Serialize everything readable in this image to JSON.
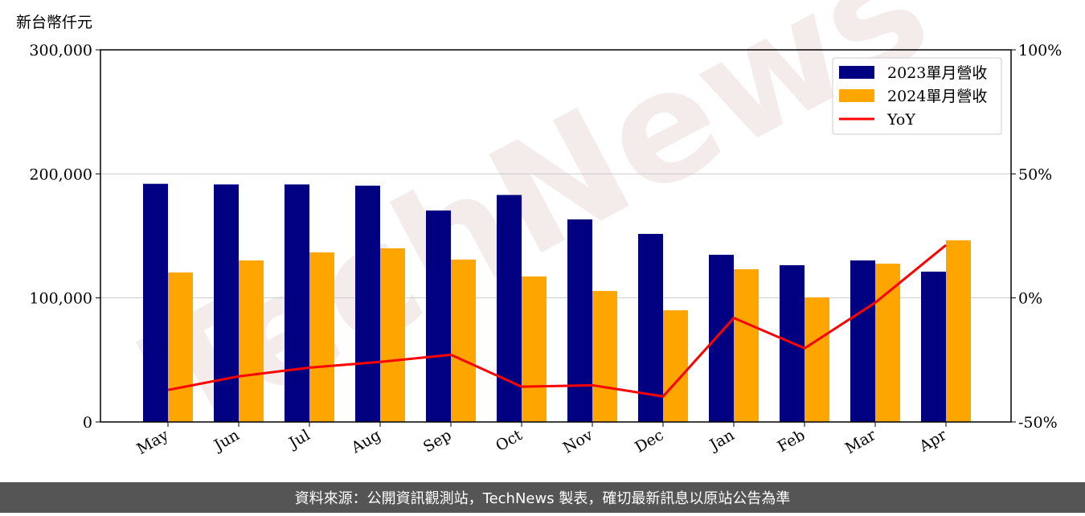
{
  "chart_data": {
    "type": "bar_line",
    "y_label": "新台幣仟元",
    "watermark": "TechNews",
    "source": "資料來源：公開資訊觀測站，TechNews 製表，確切最新訊息以原站公告為準",
    "categories": [
      "May",
      "Jun",
      "Jul",
      "Aug",
      "Sep",
      "Oct",
      "Nov",
      "Dec",
      "Jan",
      "Feb",
      "Mar",
      "Apr"
    ],
    "series": [
      {
        "name": "2023單月營收",
        "color": "#000080",
        "type": "bar",
        "values": [
          192000,
          191500,
          191500,
          190500,
          170500,
          183000,
          163300,
          151600,
          134800,
          126400,
          130200,
          121200
        ]
      },
      {
        "name": "2024單月營收",
        "color": "#ffa500",
        "type": "bar",
        "values": [
          120500,
          130200,
          136700,
          140000,
          130900,
          117300,
          105600,
          90000,
          123100,
          100400,
          127600,
          146400
        ]
      },
      {
        "name": "YoY",
        "color": "#ff0000",
        "type": "line",
        "axis": "y2",
        "values": [
          -37.1,
          -31.6,
          -28.1,
          -25.8,
          -22.9,
          -35.8,
          -35.2,
          -39.7,
          -8.1,
          -20.3,
          -1.9,
          21.3
        ]
      }
    ],
    "ylim": [
      0,
      300000
    ],
    "yticks": [
      0,
      {
        "value": 100000,
        "label": "100,000"
      },
      {
        "value": 200000,
        "label": "200,000"
      },
      {
        "value": 300000,
        "label": "300,000"
      }
    ],
    "y2lim": [
      -50,
      100
    ],
    "y2ticks": [
      {
        "value": -50,
        "label": "-50%"
      },
      {
        "value": 0,
        "label": "0%"
      },
      {
        "value": 50,
        "label": "50%"
      },
      {
        "value": 100,
        "label": "100%"
      }
    ],
    "grid": true,
    "legend": "upper right"
  }
}
